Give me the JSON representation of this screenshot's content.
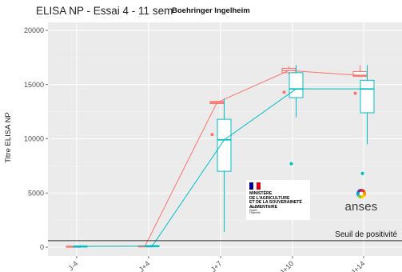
{
  "header": {
    "title": "ELISA NP - Essai 4 - 11 sem",
    "brand": "Boehringer Ingelheim"
  },
  "logos": {
    "ministry_lines": "MINISTÈRE\nDE L'AGRICULTURE\nET DE LA SOUVERAINETÉ\nALIMENTAIRE",
    "ministry_motto": "Liberté\nÉgalité\nFraternité",
    "ministry_flag_colors": [
      "#000091",
      "#ffffff",
      "#e1000f"
    ],
    "anses_name": "anses",
    "anses_colors": [
      "#e63329",
      "#f39200",
      "#ffcc00",
      "#95c11f",
      "#009fe3",
      "#7b2a83"
    ]
  },
  "chart_data": {
    "type": "box",
    "title": "ELISA NP - Essai 4 - 11 sem",
    "ylabel": "Titre ELISA NP",
    "xlabel": "",
    "categories": [
      "J-4",
      "J+4",
      "J+7",
      "J+10",
      "J+14"
    ],
    "yticks": [
      0,
      5000,
      10000,
      15000,
      20000
    ],
    "ylim": [
      -1000,
      21000
    ],
    "grid": true,
    "background": "#ebebeb",
    "threshold": {
      "value": 600,
      "label": "Seuil de positivité"
    },
    "series": [
      {
        "name": "",
        "color": "#f8766d",
        "boxes": [
          {
            "min": 50,
            "q1": 60,
            "median": 80,
            "q3": 100,
            "max": 120,
            "outliers": []
          },
          {
            "min": 80,
            "q1": 90,
            "median": 110,
            "q3": 130,
            "max": 150,
            "outliers": []
          },
          {
            "min": 13200,
            "q1": 13250,
            "median": 13350,
            "q3": 13450,
            "max": 13500,
            "outliers": [
              10400
            ]
          },
          {
            "min": 15950,
            "q1": 16100,
            "median": 16300,
            "q3": 16500,
            "max": 16700,
            "outliers": [
              14300
            ]
          },
          {
            "min": 15700,
            "q1": 15750,
            "median": 15850,
            "q3": 16200,
            "max": 16800,
            "outliers": [
              14200
            ]
          }
        ],
        "line": [
          80,
          110,
          13350,
          16300,
          15850
        ]
      },
      {
        "name": "",
        "color": "#00bfc4",
        "boxes": [
          {
            "min": 0,
            "q1": 20,
            "median": 60,
            "q3": 120,
            "max": 200,
            "outliers": []
          },
          {
            "min": 30,
            "q1": 60,
            "median": 100,
            "q3": 150,
            "max": 250,
            "outliers": []
          },
          {
            "min": 1400,
            "q1": 7000,
            "median": 9900,
            "q3": 11800,
            "max": 13700,
            "outliers": []
          },
          {
            "min": 12000,
            "q1": 13800,
            "median": 14600,
            "q3": 16100,
            "max": 16800,
            "outliers": [
              7700
            ]
          },
          {
            "min": 9500,
            "q1": 12400,
            "median": 14600,
            "q3": 15400,
            "max": 16800,
            "outliers": [
              6800
            ]
          }
        ],
        "line": [
          60,
          100,
          9900,
          14600,
          14600
        ]
      }
    ]
  }
}
